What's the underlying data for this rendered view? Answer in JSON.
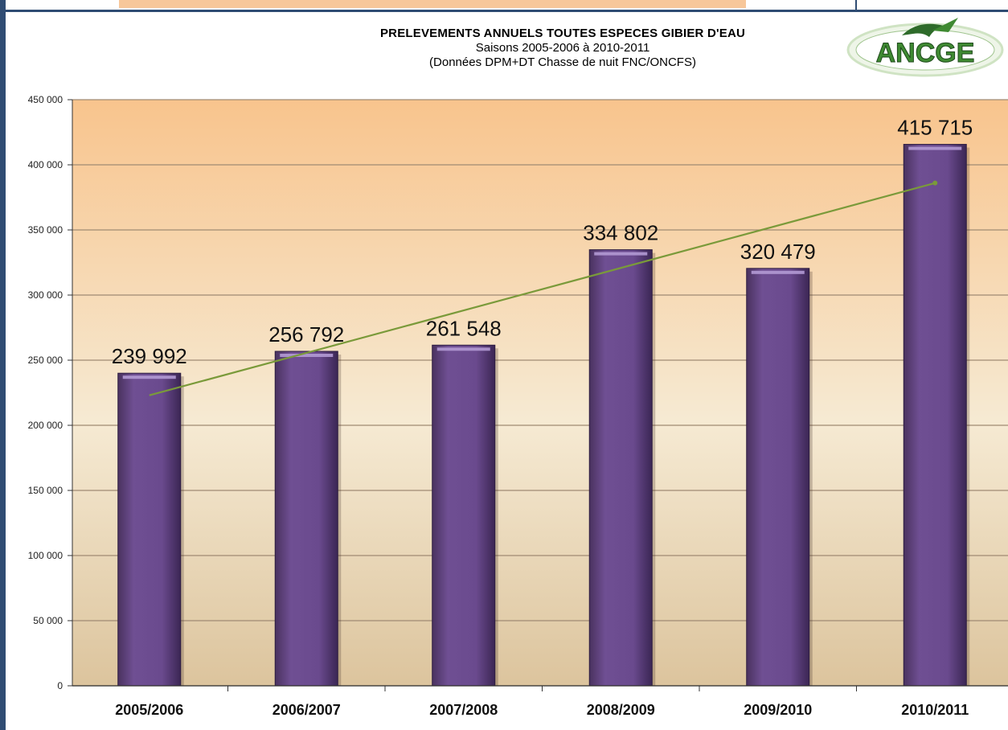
{
  "header": {
    "title": "PRELEVEMENTS ANNUELS  TOUTES ESPECES GIBIER D'EAU",
    "subtitle": "Saisons 2005-2006 à 2010-2011",
    "source": "(Données DPM+DT Chasse de nuit FNC/ONCFS)"
  },
  "logo": {
    "text": "ANCGE",
    "colors": {
      "text": "#3f8a32",
      "bird": "#2e6b2a",
      "ring": "#cfe3c3"
    }
  },
  "colors": {
    "bar": "#6a4a8e",
    "bar_dark": "#3e2858",
    "bar_highlight": "#b39ad4",
    "trend": "#7a9a3a",
    "plot_top": "#f8c48d",
    "plot_mid": "#f5ebd5",
    "plot_bottom": "#ddc6a0",
    "frame": "#2f4c73",
    "accent_orange": "#f7c79a"
  },
  "chart_data": {
    "type": "bar",
    "categories": [
      "2005/2006",
      "2006/2007",
      "2007/2008",
      "2008/2009",
      "2009/2010",
      "2010/2011"
    ],
    "values": [
      239992,
      256792,
      261548,
      334802,
      320479,
      415715
    ],
    "value_labels": [
      "239 992",
      "256 792",
      "261 548",
      "334 802",
      "320 479",
      "415 715"
    ],
    "ylim": [
      0,
      450000
    ],
    "y_ticks": [
      0,
      50000,
      100000,
      150000,
      200000,
      250000,
      300000,
      350000,
      400000,
      450000
    ],
    "y_tick_labels": [
      "0",
      "50 000",
      "100 000",
      "150 000",
      "200 000",
      "250 000",
      "300 000",
      "350 000",
      "400 000",
      "450 000"
    ],
    "trendline": {
      "type": "linear",
      "start_value": 223000,
      "end_value": 386000
    },
    "grid": true,
    "legend": "none"
  }
}
